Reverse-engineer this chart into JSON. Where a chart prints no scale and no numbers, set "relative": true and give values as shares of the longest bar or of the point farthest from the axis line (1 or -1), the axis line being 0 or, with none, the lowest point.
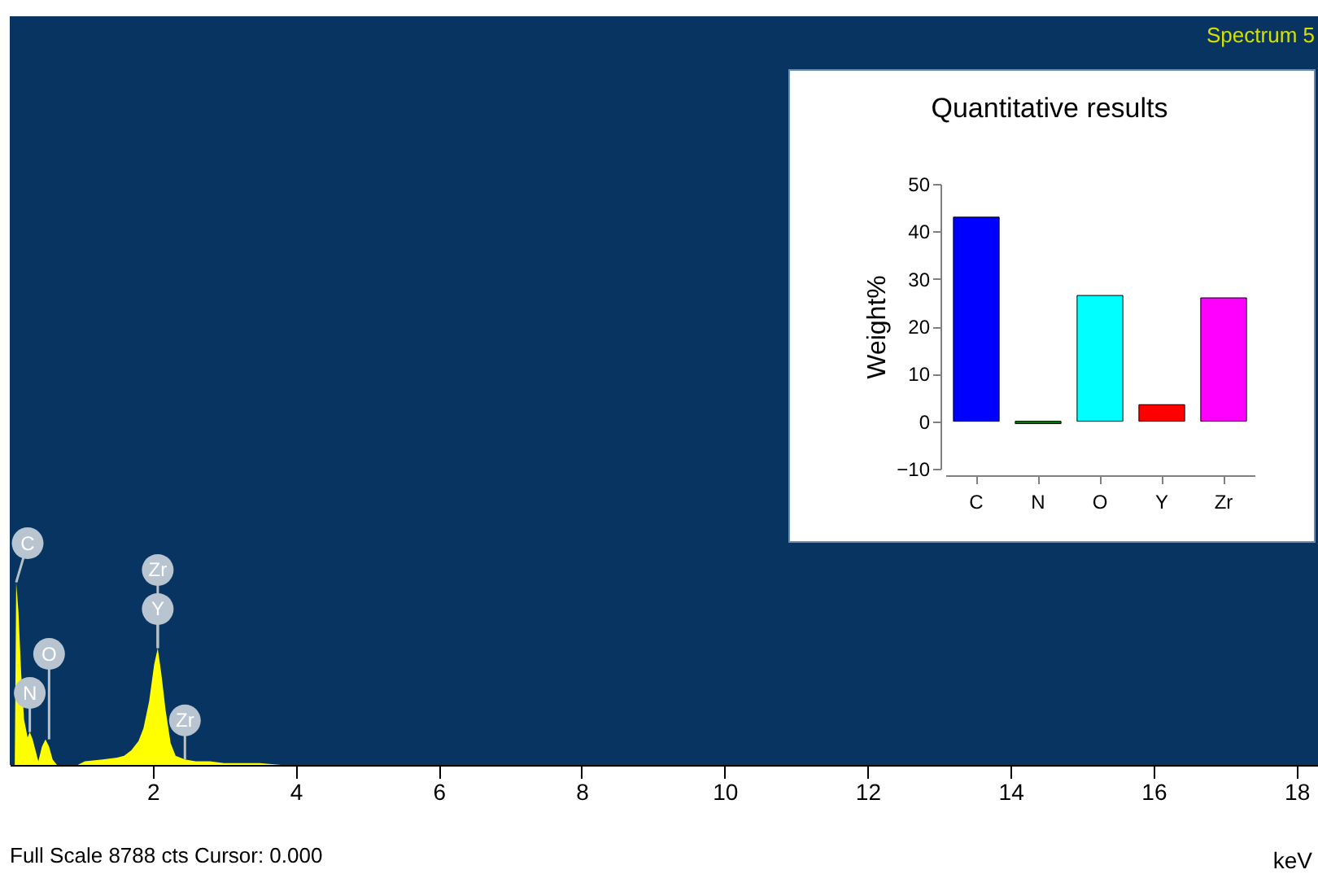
{
  "chart_data": [
    {
      "type": "area",
      "xlabel": "keV",
      "relative": true,
      "color": "#ffff00",
      "xlim": [
        0,
        18.3
      ],
      "xticks": [
        2,
        4,
        6,
        8,
        10,
        12,
        14,
        16,
        18
      ],
      "grid": false,
      "x": [
        0.07,
        0.09,
        0.12,
        0.16,
        0.2,
        0.25,
        0.28,
        0.32,
        0.36,
        0.4,
        0.45,
        0.5,
        0.55,
        0.6,
        0.66,
        0.72,
        0.8,
        0.95,
        1.05,
        1.3,
        1.5,
        1.6,
        1.7,
        1.8,
        1.87,
        1.95,
        2.02,
        2.07,
        2.12,
        2.18,
        2.25,
        2.32,
        2.45,
        2.6,
        2.8,
        3.0,
        3.2,
        3.5,
        3.8,
        18.3
      ],
      "values": [
        0,
        1.0,
        0.85,
        0.5,
        0.25,
        0.15,
        0.18,
        0.14,
        0.08,
        0.02,
        0.1,
        0.14,
        0.1,
        0.03,
        0.0,
        0.0,
        0.0,
        0.0,
        0.02,
        0.03,
        0.04,
        0.05,
        0.08,
        0.13,
        0.2,
        0.35,
        0.55,
        0.64,
        0.5,
        0.3,
        0.12,
        0.05,
        0.03,
        0.02,
        0.02,
        0.01,
        0.01,
        0.01,
        0,
        0
      ],
      "annotations": [
        {
          "text": "C",
          "x": 0.09,
          "y": 1.0
        },
        {
          "text": "N",
          "x": 0.28,
          "y": 0.18
        },
        {
          "text": "O",
          "x": 0.55,
          "y": 0.14
        },
        {
          "text": "Y",
          "x": 2.07,
          "y": 0.64
        },
        {
          "text": "Zr",
          "x": 2.07,
          "y": 0.64
        },
        {
          "text": "Zr",
          "x": 2.45,
          "y": 0.03
        },
        "Full Scale 8788 cts Cursor: 0.000",
        "Spectrum 5"
      ]
    },
    {
      "type": "bar",
      "title": "Quantitative results",
      "ylabel": "Weight%",
      "categories": [
        "C",
        "N",
        "O",
        "Y",
        "Zr"
      ],
      "values": [
        43,
        -0.5,
        26.5,
        3.5,
        26
      ],
      "colors": [
        "#0000ff",
        "#008000",
        "#00ffff",
        "#ff0000",
        "#ff00ff"
      ],
      "ylim": [
        -10,
        50
      ],
      "yticks": [
        -10,
        0,
        10,
        20,
        30,
        40,
        50
      ],
      "grid": false
    }
  ]
}
